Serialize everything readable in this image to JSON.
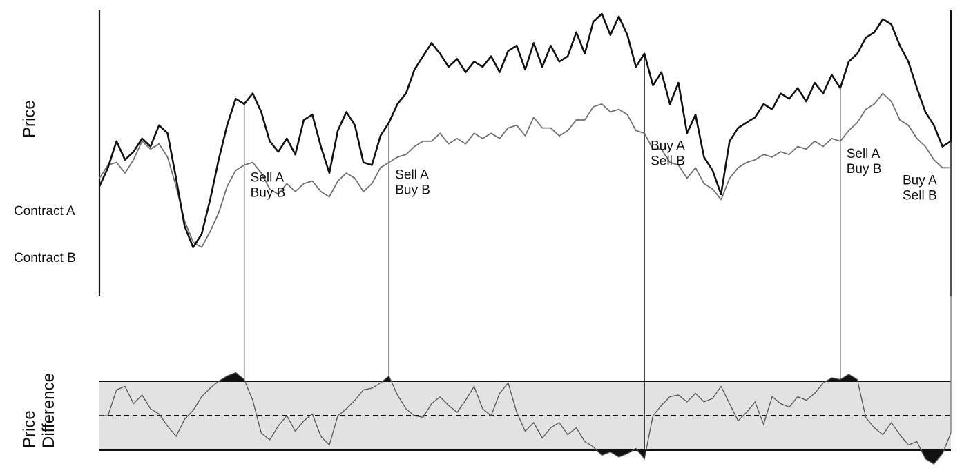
{
  "chart_data": {
    "type": "line",
    "top_panel": {
      "ylabel": "Price",
      "series": [
        {
          "name": "Contract A",
          "color": "#111111",
          "values": [
            35,
            42,
            52,
            45,
            48,
            53,
            50,
            58,
            55,
            38,
            20,
            12,
            17,
            30,
            45,
            58,
            68,
            66,
            70,
            63,
            52,
            48,
            53,
            47,
            60,
            62,
            50,
            40,
            56,
            63,
            58,
            44,
            43,
            54,
            59,
            66,
            70,
            79,
            84,
            89,
            85,
            80,
            83,
            78,
            82,
            80,
            84,
            78,
            86,
            88,
            79,
            89,
            80,
            88,
            82,
            84,
            93,
            85,
            97,
            100,
            92,
            99,
            92,
            80,
            85,
            73,
            78,
            66,
            74,
            55,
            62,
            46,
            41,
            32,
            52,
            57,
            59,
            61,
            66,
            64,
            70,
            68,
            72,
            67,
            74,
            70,
            77,
            72,
            82,
            85,
            91,
            93,
            98,
            96,
            88,
            82,
            72,
            63,
            58,
            50,
            52
          ]
        },
        {
          "name": "Contract B",
          "color": "#707070",
          "values": [
            38,
            43,
            44,
            40,
            45,
            52,
            49,
            51,
            46,
            35,
            22,
            14,
            12,
            18,
            25,
            35,
            41,
            43,
            44,
            40,
            34,
            32,
            36,
            33,
            36,
            37,
            33,
            31,
            37,
            40,
            38,
            33,
            36,
            42,
            44,
            46,
            47,
            50,
            52,
            52,
            55,
            51,
            53,
            51,
            55,
            53,
            55,
            53,
            57,
            58,
            54,
            61,
            57,
            57,
            54,
            56,
            60,
            60,
            65,
            66,
            63,
            64,
            62,
            56,
            55,
            49,
            49,
            44,
            43,
            38,
            42,
            36,
            34,
            30,
            38,
            42,
            44,
            45,
            47,
            46,
            48,
            47,
            50,
            49,
            52,
            50,
            53,
            52,
            56,
            59,
            64,
            66,
            70,
            67,
            60,
            58,
            53,
            50,
            45,
            42,
            42
          ]
        }
      ],
      "signals": [
        {
          "index": 17,
          "line1": "Sell A",
          "line2": "Buy B"
        },
        {
          "index": 34,
          "line1": "Sell A",
          "line2": "Buy B"
        },
        {
          "index": 64,
          "line1": "Buy A",
          "line2": "Sell B"
        },
        {
          "index": 87,
          "line1": "Sell A",
          "line2": "Buy B"
        },
        {
          "index": 100,
          "line1": "Buy A",
          "line2": "Sell B"
        }
      ]
    },
    "bottom_panel": {
      "ylabel": "Price Difference",
      "band": [
        -1,
        1
      ],
      "mean": 0,
      "values": [
        0,
        0,
        0.75,
        0.85,
        0.35,
        0.6,
        0.2,
        0.05,
        -0.3,
        -0.6,
        -0.1,
        0.15,
        0.55,
        0.8,
        1.0,
        1.15,
        1.25,
        1.05,
        0.45,
        -0.5,
        -0.7,
        -0.3,
        0.0,
        -0.45,
        -0.15,
        0.05,
        -0.6,
        -0.85,
        0.0,
        0.2,
        0.45,
        0.75,
        0.8,
        0.95,
        1.15,
        0.6,
        0.2,
        0.0,
        -0.05,
        0.35,
        0.55,
        0.3,
        0.1,
        0.45,
        0.85,
        0.2,
        0.0,
        0.65,
        0.95,
        0.1,
        -0.45,
        -0.2,
        -0.65,
        -0.35,
        -0.2,
        -0.55,
        -0.35,
        -0.75,
        -0.9,
        -1.15,
        -1.05,
        -1.2,
        -1.1,
        -0.95,
        -1.25,
        0.0,
        0.3,
        0.55,
        0.6,
        0.4,
        0.65,
        0.4,
        0.5,
        0.85,
        0.35,
        -0.15,
        0.1,
        0.4,
        -0.25,
        0.55,
        0.35,
        0.25,
        0.55,
        0.45,
        0.65,
        0.95,
        1.1,
        1.05,
        1.2,
        1.05,
        -0.05,
        -0.35,
        -0.55,
        -0.2,
        -0.55,
        -0.85,
        -0.75,
        -1.25,
        -1.4,
        -1.1,
        -0.5
      ]
    }
  }
}
